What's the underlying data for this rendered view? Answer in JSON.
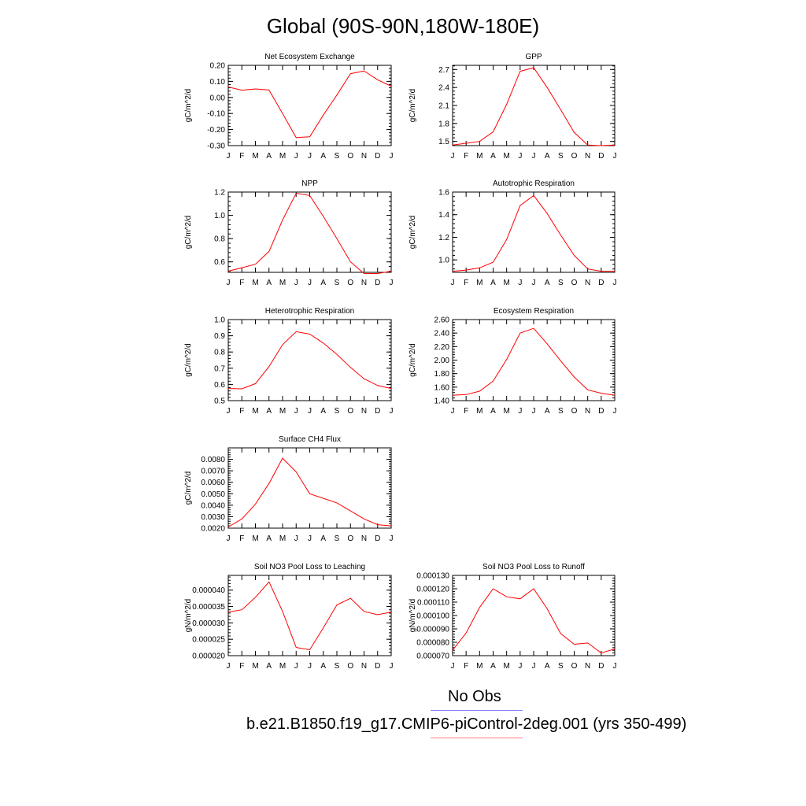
{
  "page": {
    "title": "Global (90S-90N,180W-180E)"
  },
  "legend": {
    "obs_label": "No Obs",
    "obs_color": "#7f7fff",
    "case_label": "b.e21.B1850.f19_g17.CMIP6-piControl-2deg.001 (yrs 350-499)",
    "case_color": "#ff7f7f"
  },
  "month_labels": [
    "J",
    "F",
    "M",
    "A",
    "M",
    "J",
    "J",
    "A",
    "S",
    "O",
    "N",
    "D",
    "J"
  ],
  "line_color": "#ff0000",
  "chart_data": [
    {
      "type": "line",
      "title": "Net Ecosystem Exchange",
      "ylabel": "gC/m^2/d",
      "ylim": [
        -0.3,
        0.2
      ],
      "yticks": [
        -0.3,
        -0.2,
        -0.1,
        0.0,
        0.1,
        0.2
      ],
      "yticklabels": [
        "-0.30",
        "-0.20",
        "-0.10",
        "0.00",
        "0.10",
        "0.20"
      ],
      "y": [
        0.065,
        0.045,
        0.053,
        0.046,
        -0.1,
        -0.25,
        -0.245,
        -0.11,
        0.015,
        0.148,
        0.165,
        0.11,
        0.07
      ]
    },
    {
      "type": "line",
      "title": "GPP",
      "ylabel": "gC/m^2/d",
      "ylim": [
        1.43,
        2.77
      ],
      "yticks": [
        1.5,
        1.8,
        2.1,
        2.4,
        2.7
      ],
      "yticklabels": [
        "1.5",
        "1.8",
        "2.1",
        "2.4",
        "2.7"
      ],
      "y": [
        1.44,
        1.47,
        1.5,
        1.66,
        2.12,
        2.67,
        2.73,
        2.4,
        2.03,
        1.65,
        1.44,
        1.43,
        1.44
      ]
    },
    {
      "type": "line",
      "title": "NPP",
      "ylabel": "gC/m^2/d",
      "ylim": [
        0.51,
        1.2
      ],
      "yticks": [
        0.6,
        0.8,
        1.0,
        1.2
      ],
      "yticklabels": [
        "0.6",
        "0.8",
        "1.0",
        "1.2"
      ],
      "y": [
        0.52,
        0.55,
        0.58,
        0.69,
        0.96,
        1.19,
        1.17,
        0.99,
        0.8,
        0.6,
        0.5,
        0.5,
        0.52
      ]
    },
    {
      "type": "line",
      "title": "Autotrophic Respiration",
      "ylabel": "gC/m^2/d",
      "ylim": [
        0.89,
        1.6
      ],
      "yticks": [
        1.0,
        1.2,
        1.4,
        1.6
      ],
      "yticklabels": [
        "1.0",
        "1.2",
        "1.4",
        "1.6"
      ],
      "y": [
        0.9,
        0.91,
        0.93,
        0.98,
        1.18,
        1.48,
        1.57,
        1.41,
        1.22,
        1.04,
        0.92,
        0.9,
        0.9
      ]
    },
    {
      "type": "line",
      "title": "Heterotrophic Respiration",
      "ylabel": "gC/m^2/d",
      "ylim": [
        0.5,
        1.0
      ],
      "yticks": [
        0.5,
        0.6,
        0.7,
        0.8,
        0.9,
        1.0
      ],
      "yticklabels": [
        "0.5",
        "0.6",
        "0.7",
        "0.8",
        "0.9",
        "1.0"
      ],
      "y": [
        0.575,
        0.573,
        0.605,
        0.71,
        0.845,
        0.925,
        0.91,
        0.855,
        0.785,
        0.705,
        0.635,
        0.593,
        0.575
      ]
    },
    {
      "type": "line",
      "title": "Ecosystem Respiration",
      "ylabel": "gC/m^2/d",
      "ylim": [
        1.4,
        2.6
      ],
      "yticks": [
        1.4,
        1.6,
        1.8,
        2.0,
        2.2,
        2.4,
        2.6
      ],
      "yticklabels": [
        "1.40",
        "1.60",
        "1.80",
        "2.00",
        "2.20",
        "2.40",
        "2.60"
      ],
      "y": [
        1.48,
        1.49,
        1.54,
        1.69,
        2.01,
        2.4,
        2.47,
        2.24,
        1.99,
        1.75,
        1.56,
        1.51,
        1.48
      ]
    },
    {
      "type": "line",
      "title": "Surface CH4 Flux",
      "ylabel": "gC/m^2/d",
      "ylim": [
        0.002,
        0.009
      ],
      "yticks": [
        0.002,
        0.003,
        0.004,
        0.005,
        0.006,
        0.007,
        0.008
      ],
      "yticklabels": [
        "0.0020",
        "0.0030",
        "0.0040",
        "0.0050",
        "0.0060",
        "0.0070",
        "0.0080"
      ],
      "y": [
        0.0021,
        0.0028,
        0.0041,
        0.0059,
        0.0081,
        0.0069,
        0.005,
        0.0046,
        0.0042,
        0.0035,
        0.0028,
        0.0023,
        0.0022
      ]
    },
    {
      "type": "line",
      "title": "Soil NO3 Pool Loss to Leaching",
      "ylabel": "gN/m^2/d",
      "ylim": [
        2e-05,
        4.45e-05
      ],
      "yticks": [
        2e-05,
        2.5e-05,
        3e-05,
        3.5e-05,
        4e-05
      ],
      "yticklabels": [
        "0.000020",
        "0.000025",
        "0.000030",
        "0.000035",
        "0.000040"
      ],
      "y": [
        3.33e-05,
        3.4e-05,
        3.78e-05,
        4.25e-05,
        3.35e-05,
        2.25e-05,
        2.18e-05,
        2.85e-05,
        3.55e-05,
        3.75e-05,
        3.35e-05,
        3.25e-05,
        3.33e-05
      ]
    },
    {
      "type": "line",
      "title": "Soil NO3 Pool Loss to Runoff",
      "ylabel": "gN/m^2/d",
      "ylim": [
        7e-05,
        0.00013
      ],
      "yticks": [
        7e-05,
        8e-05,
        9e-05,
        0.0001,
        0.00011,
        0.00012,
        0.00013
      ],
      "yticklabels": [
        "0.000070",
        "0.000080",
        "0.000090",
        "0.000100",
        "0.000110",
        "0.000120",
        "0.000130"
      ],
      "y": [
        7.4e-05,
        8.7e-05,
        0.000106,
        0.00012,
        0.000114,
        0.0001125,
        0.00012,
        0.000105,
        8.65e-05,
        7.85e-05,
        7.95e-05,
        7.2e-05,
        7.5e-05
      ]
    }
  ]
}
